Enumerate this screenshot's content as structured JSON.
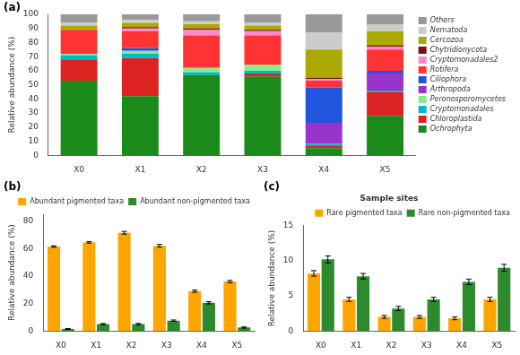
{
  "chart_data": [
    {
      "type": "bar",
      "stacked": true,
      "annotations": [
        "(a)"
      ],
      "ylabel": "Relative abundance (%)",
      "categories": [
        "X0",
        "X1",
        "X2",
        "X3",
        "X4",
        "X5"
      ],
      "series": [
        {
          "name": "Ochrophyta",
          "color": "#1a8a1a",
          "values": [
            53,
            42,
            57,
            56,
            5,
            28
          ]
        },
        {
          "name": "Chloroplastida",
          "color": "#dd2222",
          "values": [
            15,
            27,
            0,
            2,
            2,
            17
          ]
        },
        {
          "name": "Cryptomonadales",
          "color": "#00bbcc",
          "values": [
            3,
            3,
            2,
            2,
            1,
            1
          ]
        },
        {
          "name": "Peronosporomycetes",
          "color": "#88ee88",
          "values": [
            1,
            2,
            3,
            4,
            0,
            0
          ]
        },
        {
          "name": "Arthropoda",
          "color": "#9933cc",
          "values": [
            0,
            0,
            0,
            0,
            15,
            12
          ]
        },
        {
          "name": "Ciliophora",
          "color": "#2255dd",
          "values": [
            0,
            2,
            0,
            0,
            25,
            2
          ]
        },
        {
          "name": "Rotifera",
          "color": "#ff3333",
          "values": [
            17,
            12,
            23,
            21,
            5,
            15
          ]
        },
        {
          "name": "Cryptomonadales2",
          "color": "#ff88cc",
          "values": [
            0,
            2,
            4,
            3,
            1,
            2
          ]
        },
        {
          "name": "Chytridionycota",
          "color": "#771111",
          "values": [
            0,
            1,
            1,
            1,
            1,
            1
          ]
        },
        {
          "name": "Cercozoa",
          "color": "#aaaa00",
          "values": [
            3,
            3,
            3,
            3,
            20,
            10
          ]
        },
        {
          "name": "Nematoda",
          "color": "#cccccc",
          "values": [
            2,
            2,
            2,
            2,
            12,
            5
          ]
        },
        {
          "name": "Others",
          "color": "#999999",
          "values": [
            6,
            4,
            5,
            6,
            13,
            7
          ]
        }
      ],
      "ylim": [
        0,
        100
      ],
      "yticks": [
        0,
        10,
        20,
        30,
        40,
        50,
        60,
        70,
        80,
        90,
        100
      ],
      "grid": false,
      "legend": "right"
    },
    {
      "type": "bar",
      "annotations": [
        "(b)"
      ],
      "ylabel": "Relative abundance (%)",
      "categories": [
        "X0",
        "X1",
        "X2",
        "X3",
        "X4",
        "X5"
      ],
      "series": [
        {
          "name": "Abundant pigmented taxa",
          "color": "#FFA500",
          "values": [
            61.5,
            64.5,
            71.5,
            62.0,
            29.0,
            36.0
          ],
          "errors": [
            0.5,
            0.5,
            1.0,
            1.0,
            0.8,
            0.8
          ]
        },
        {
          "name": "Abundant non-pigmented taxa",
          "color": "#2d8a2d",
          "values": [
            1.5,
            5.0,
            5.0,
            7.5,
            20.5,
            2.5
          ],
          "errors": [
            0.3,
            0.4,
            0.5,
            0.5,
            0.8,
            0.4
          ]
        }
      ],
      "ylim": [
        0,
        85
      ],
      "yticks": [
        0,
        20,
        40,
        60,
        80
      ],
      "grid": false,
      "legend": "upper right"
    },
    {
      "type": "bar",
      "title": "Sample sites",
      "annotations": [
        "(c)"
      ],
      "ylabel": "Relative abundance (%)",
      "categories": [
        "X0",
        "X1",
        "X2",
        "X3",
        "X4",
        "X5"
      ],
      "series": [
        {
          "name": "Rare pigmented taxa",
          "color": "#FFA500",
          "values": [
            8.2,
            4.5,
            2.0,
            2.0,
            1.8,
            4.5
          ],
          "errors": [
            0.4,
            0.3,
            0.2,
            0.2,
            0.2,
            0.3
          ]
        },
        {
          "name": "Rare non-pigmented taxa",
          "color": "#2d8a2d",
          "values": [
            10.2,
            7.8,
            3.2,
            4.5,
            7.0,
            9.0
          ],
          "errors": [
            0.5,
            0.4,
            0.3,
            0.3,
            0.4,
            0.5
          ]
        }
      ],
      "ylim": [
        0,
        15
      ],
      "yticks": [
        0,
        5,
        10,
        15
      ],
      "grid": false,
      "legend": "upper right"
    }
  ]
}
